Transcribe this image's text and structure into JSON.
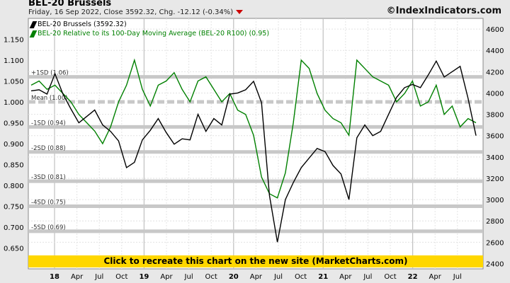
{
  "header": {
    "title": "BEL-20 Brussels",
    "subtitle": "Friday, 16 Sep 2022, Close 3592.32, Chg. -12.12 (-0.34%)",
    "site": "©IndexIndicators.com"
  },
  "legend": {
    "items": [
      {
        "label": "BEL-20 Brussels (3592.32)",
        "color": "#000000"
      },
      {
        "label": "BEL-20 Relative to its 100-Day Moving Average (BEL-20 R100) (0.95)",
        "color": "#008000"
      }
    ]
  },
  "banner": {
    "label": "Click to recreate this chart on the new site (MarketCharts.com)"
  },
  "chart_data": {
    "type": "line",
    "x_ticks": [
      "18",
      "Apr",
      "Jul",
      "Oct",
      "19",
      "Apr",
      "Jul",
      "Oct",
      "20",
      "Apr",
      "Jul",
      "Oct",
      "21",
      "Apr",
      "Jul",
      "Oct",
      "22",
      "Apr",
      "Jul"
    ],
    "left_axis": {
      "ticks": [
        "0.650",
        "0.700",
        "0.750",
        "0.800",
        "0.850",
        "0.900",
        "0.950",
        "1.000",
        "1.050",
        "1.100",
        "1.150"
      ],
      "range": [
        0.6,
        1.2
      ]
    },
    "right_axis": {
      "ticks": [
        "2400",
        "2600",
        "2800",
        "3000",
        "3200",
        "3400",
        "3600",
        "3800",
        "4000",
        "4200",
        "4400",
        "4600"
      ],
      "range": [
        2350,
        4700
      ]
    },
    "sd_bands": [
      {
        "label": "+1SD (1.06)",
        "value": 1.06
      },
      {
        "label": "Mean (1.00)",
        "value": 1.0
      },
      {
        "label": "-1SD (0.94)",
        "value": 0.94
      },
      {
        "label": "-2SD (0.88)",
        "value": 0.88
      },
      {
        "label": "-3SD (0.81)",
        "value": 0.81
      },
      {
        "label": "-4SD (0.75)",
        "value": 0.75
      },
      {
        "label": "-5SD (0.69)",
        "value": 0.69
      }
    ],
    "series": [
      {
        "name": "BEL-20 Brussels",
        "axis": "right",
        "color": "#000000",
        "x": [
          0,
          1,
          2,
          3,
          4,
          5,
          6,
          7,
          8,
          9,
          10,
          11,
          12,
          13,
          14,
          15,
          16,
          17,
          18,
          19,
          20,
          21,
          22,
          23,
          24,
          25,
          26,
          27,
          28,
          29,
          30,
          31,
          32,
          33,
          34,
          35,
          36,
          37,
          38,
          39,
          40,
          41,
          42,
          43,
          44,
          45,
          46,
          47,
          48,
          49,
          50,
          51,
          52,
          53,
          54,
          55,
          56
        ],
        "values": [
          4020,
          4030,
          3990,
          4180,
          3990,
          3850,
          3720,
          3780,
          3840,
          3700,
          3640,
          3550,
          3300,
          3350,
          3560,
          3650,
          3760,
          3630,
          3520,
          3570,
          3560,
          3800,
          3640,
          3760,
          3700,
          3990,
          4000,
          4030,
          4110,
          3910,
          3040,
          2600,
          3000,
          3160,
          3300,
          3390,
          3480,
          3450,
          3320,
          3240,
          3000,
          3580,
          3700,
          3600,
          3640,
          3800,
          3960,
          4050,
          4080,
          4050,
          4170,
          4300,
          4150,
          4200,
          4250,
          3950,
          3600
        ]
      },
      {
        "name": "BEL-20 Relative to its 100-Day Moving Average (BEL-20 R100)",
        "axis": "left",
        "color": "#008000",
        "x": [
          0,
          1,
          2,
          3,
          4,
          5,
          6,
          7,
          8,
          9,
          10,
          11,
          12,
          13,
          14,
          15,
          16,
          17,
          18,
          19,
          20,
          21,
          22,
          23,
          24,
          25,
          26,
          27,
          28,
          29,
          30,
          31,
          32,
          33,
          34,
          35,
          36,
          37,
          38,
          39,
          40,
          41,
          42,
          43,
          44,
          45,
          46,
          47,
          48,
          49,
          50,
          51,
          52,
          53,
          54,
          55,
          56
        ],
        "values": [
          1.04,
          1.05,
          1.03,
          1.04,
          1.02,
          1.0,
          0.97,
          0.95,
          0.93,
          0.9,
          0.94,
          1.0,
          1.04,
          1.1,
          1.03,
          0.99,
          1.04,
          1.05,
          1.07,
          1.03,
          1.0,
          1.05,
          1.06,
          1.03,
          1.0,
          1.02,
          0.98,
          0.97,
          0.92,
          0.82,
          0.78,
          0.77,
          0.83,
          0.95,
          1.1,
          1.08,
          1.02,
          0.98,
          0.96,
          0.95,
          0.92,
          1.1,
          1.08,
          1.06,
          1.05,
          1.04,
          1.0,
          1.02,
          1.05,
          0.99,
          1.0,
          1.04,
          0.97,
          0.99,
          0.94,
          0.96,
          0.95
        ]
      }
    ],
    "legend_position": "top-left",
    "grid": true
  }
}
